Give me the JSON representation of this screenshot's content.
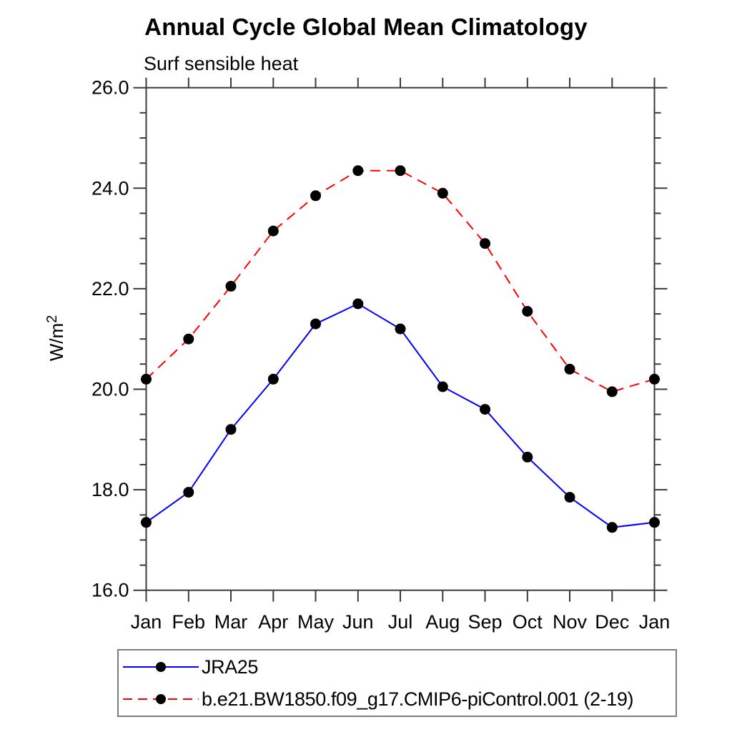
{
  "chart_data": {
    "type": "line",
    "title": "Annual Cycle Global Mean Climatology",
    "subtitle": "Surf sensible heat",
    "xlabel": "",
    "ylabel": "W/m²",
    "ylabel_parts": {
      "base": "W/m",
      "sup": "2"
    },
    "categories": [
      "Jan",
      "Feb",
      "Mar",
      "Apr",
      "May",
      "Jun",
      "Jul",
      "Aug",
      "Sep",
      "Oct",
      "Nov",
      "Dec",
      "Jan"
    ],
    "ylim": [
      16.0,
      26.0
    ],
    "yticks_major": [
      16.0,
      18.0,
      20.0,
      22.0,
      24.0,
      26.0
    ],
    "ytick_labels": [
      "16.0",
      "18.0",
      "20.0",
      "22.0",
      "24.0",
      "26.0"
    ],
    "ytick_minor_step": 0.5,
    "grid": false,
    "legend_position": "bottom-left",
    "axis_color": "#3a3a3a",
    "marker": {
      "shape": "circle",
      "color": "#000000",
      "radius": 7.5
    },
    "series": [
      {
        "id": "jra25",
        "name": "JRA25",
        "color": "#0000ff",
        "line_style": "solid",
        "values": [
          17.35,
          17.95,
          19.2,
          20.2,
          21.3,
          21.7,
          21.2,
          20.05,
          19.6,
          18.65,
          17.85,
          17.25,
          17.35
        ]
      },
      {
        "id": "picontrol",
        "name": "b.e21.BW1850.f09_g17.CMIP6-piControl.001 (2-19)",
        "color": "#ff0000",
        "line_style": "dashed",
        "values": [
          20.2,
          21.0,
          22.05,
          23.15,
          23.85,
          24.35,
          24.35,
          23.9,
          22.9,
          21.55,
          20.4,
          19.95,
          20.2
        ]
      }
    ]
  }
}
